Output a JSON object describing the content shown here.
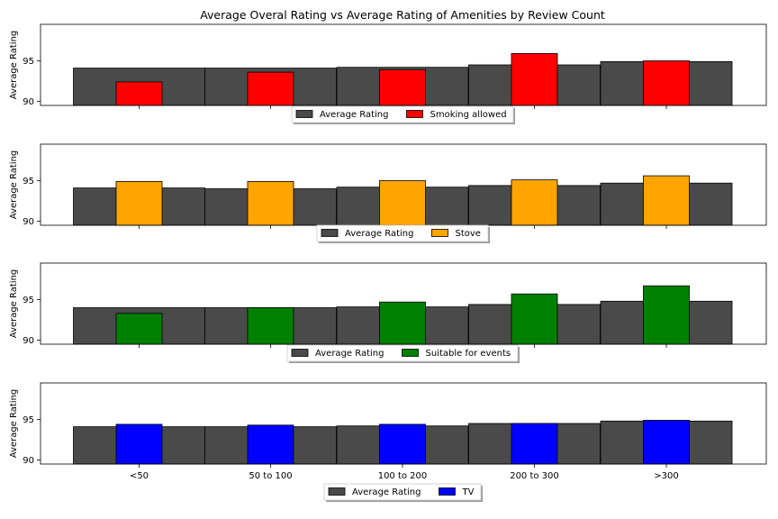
{
  "chart_data": {
    "type": "bar",
    "title": "Average Overal Rating vs Average Rating of Amenities by Review Count",
    "categories": [
      "<50",
      "50 to 100",
      "100 to 200",
      "200 to 300",
      ">300"
    ],
    "ylabel": "Average Rating",
    "ylim": [
      89.5,
      99.5
    ],
    "yticks": [
      90,
      95
    ],
    "grid": false,
    "legend_position": "below",
    "baseline_color": "#4a4a4a",
    "panels": [
      {
        "legend": [
          "Average Rating",
          "Smoking allowed"
        ],
        "series": [
          {
            "name": "Average Rating",
            "color": "#4a4a4a",
            "values": [
              94.1,
              94.1,
              94.2,
              94.5,
              94.9
            ]
          },
          {
            "name": "Smoking allowed",
            "color": "#ff0000",
            "values": [
              92.4,
              93.6,
              93.9,
              95.9,
              95.0
            ]
          }
        ]
      },
      {
        "legend": [
          "Average Rating",
          "Stove"
        ],
        "series": [
          {
            "name": "Average Rating",
            "color": "#4a4a4a",
            "values": [
              94.1,
              94.0,
              94.2,
              94.4,
              94.7
            ]
          },
          {
            "name": "Stove",
            "color": "#ffa500",
            "values": [
              94.9,
              94.9,
              95.0,
              95.1,
              95.6
            ]
          }
        ]
      },
      {
        "legend": [
          "Average Rating",
          "Suitable for events"
        ],
        "series": [
          {
            "name": "Average Rating",
            "color": "#4a4a4a",
            "values": [
              94.0,
              94.0,
              94.1,
              94.4,
              94.8
            ]
          },
          {
            "name": "Suitable for events",
            "color": "#008000",
            "values": [
              93.3,
              94.0,
              94.7,
              95.7,
              96.7
            ]
          }
        ]
      },
      {
        "legend": [
          "Average Rating",
          "TV"
        ],
        "series": [
          {
            "name": "Average Rating",
            "color": "#4a4a4a",
            "values": [
              94.1,
              94.1,
              94.2,
              94.5,
              94.8
            ]
          },
          {
            "name": "TV",
            "color": "#0000ff",
            "values": [
              94.4,
              94.3,
              94.4,
              94.5,
              94.9
            ]
          }
        ]
      }
    ]
  }
}
